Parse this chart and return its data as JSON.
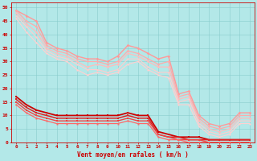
{
  "xlabel": "Vent moyen/en rafales ( km/h )",
  "background_color": "#b3e8e8",
  "grid_color": "#88cccc",
  "xlim": [
    -0.5,
    23.5
  ],
  "ylim": [
    0,
    52
  ],
  "yticks": [
    0,
    5,
    10,
    15,
    20,
    25,
    30,
    35,
    40,
    45,
    50
  ],
  "xticks": [
    0,
    1,
    2,
    3,
    4,
    5,
    6,
    7,
    8,
    9,
    10,
    11,
    12,
    13,
    14,
    15,
    16,
    17,
    18,
    19,
    20,
    21,
    22,
    23
  ],
  "lines_light": [
    {
      "y": [
        49,
        47,
        45,
        37,
        35,
        34,
        32,
        31,
        31,
        30,
        32,
        36,
        35,
        33,
        31,
        32,
        18,
        19,
        10,
        7,
        6,
        7,
        11,
        11
      ],
      "color": "#ff9999",
      "lw": 1.0,
      "marker": "D",
      "ms": 1.8
    },
    {
      "y": [
        49,
        45,
        43,
        36,
        34,
        33,
        31,
        30,
        30,
        29,
        30,
        34,
        33,
        31,
        29,
        30,
        17,
        18,
        9,
        6,
        5,
        6,
        10,
        10
      ],
      "color": "#ffaaaa",
      "lw": 0.9,
      "marker": "D",
      "ms": 1.6
    },
    {
      "y": [
        48,
        44,
        41,
        35,
        33,
        32,
        30,
        28,
        29,
        28,
        29,
        33,
        32,
        30,
        28,
        28,
        16,
        17,
        8,
        5,
        4,
        5,
        9,
        9
      ],
      "color": "#ffbbbb",
      "lw": 0.9,
      "marker": "D",
      "ms": 1.6
    },
    {
      "y": [
        47,
        43,
        39,
        34,
        32,
        31,
        29,
        27,
        27,
        26,
        27,
        31,
        31,
        28,
        26,
        26,
        15,
        16,
        7,
        4,
        3,
        4,
        8,
        8
      ],
      "color": "#ffcccc",
      "lw": 0.8,
      "marker": "D",
      "ms": 1.4
    },
    {
      "y": [
        46,
        41,
        37,
        33,
        31,
        30,
        27,
        25,
        26,
        25,
        26,
        29,
        30,
        27,
        25,
        24,
        14,
        14,
        6,
        3,
        2,
        3,
        7,
        7
      ],
      "color": "#ffd0d0",
      "lw": 0.8,
      "marker": "D",
      "ms": 1.4
    }
  ],
  "lines_dark": [
    {
      "y": [
        17,
        14,
        12,
        11,
        10,
        10,
        10,
        10,
        10,
        10,
        10,
        11,
        10,
        10,
        4,
        3,
        2,
        2,
        2,
        1,
        1,
        1,
        1,
        1
      ],
      "color": "#cc0000",
      "lw": 1.3,
      "marker": "s",
      "ms": 1.8
    },
    {
      "y": [
        16,
        13,
        11,
        10,
        9,
        9,
        9,
        9,
        9,
        9,
        9,
        10,
        9,
        9,
        3,
        2,
        2,
        1,
        1,
        1,
        1,
        1,
        1,
        1
      ],
      "color": "#dd2222",
      "lw": 1.1,
      "marker": "s",
      "ms": 1.6
    },
    {
      "y": [
        15,
        12,
        10,
        9,
        8,
        8,
        8,
        8,
        8,
        8,
        8,
        9,
        8,
        8,
        3,
        2,
        1,
        1,
        1,
        0,
        0,
        0,
        0,
        0
      ],
      "color": "#ee4444",
      "lw": 1.0,
      "marker": "s",
      "ms": 1.5
    },
    {
      "y": [
        14,
        11,
        9,
        8,
        7,
        7,
        7,
        7,
        7,
        7,
        7,
        8,
        7,
        7,
        2,
        1,
        1,
        0,
        0,
        0,
        0,
        0,
        0,
        0
      ],
      "color": "#ff6666",
      "lw": 0.9,
      "marker": "s",
      "ms": 1.4
    }
  ]
}
